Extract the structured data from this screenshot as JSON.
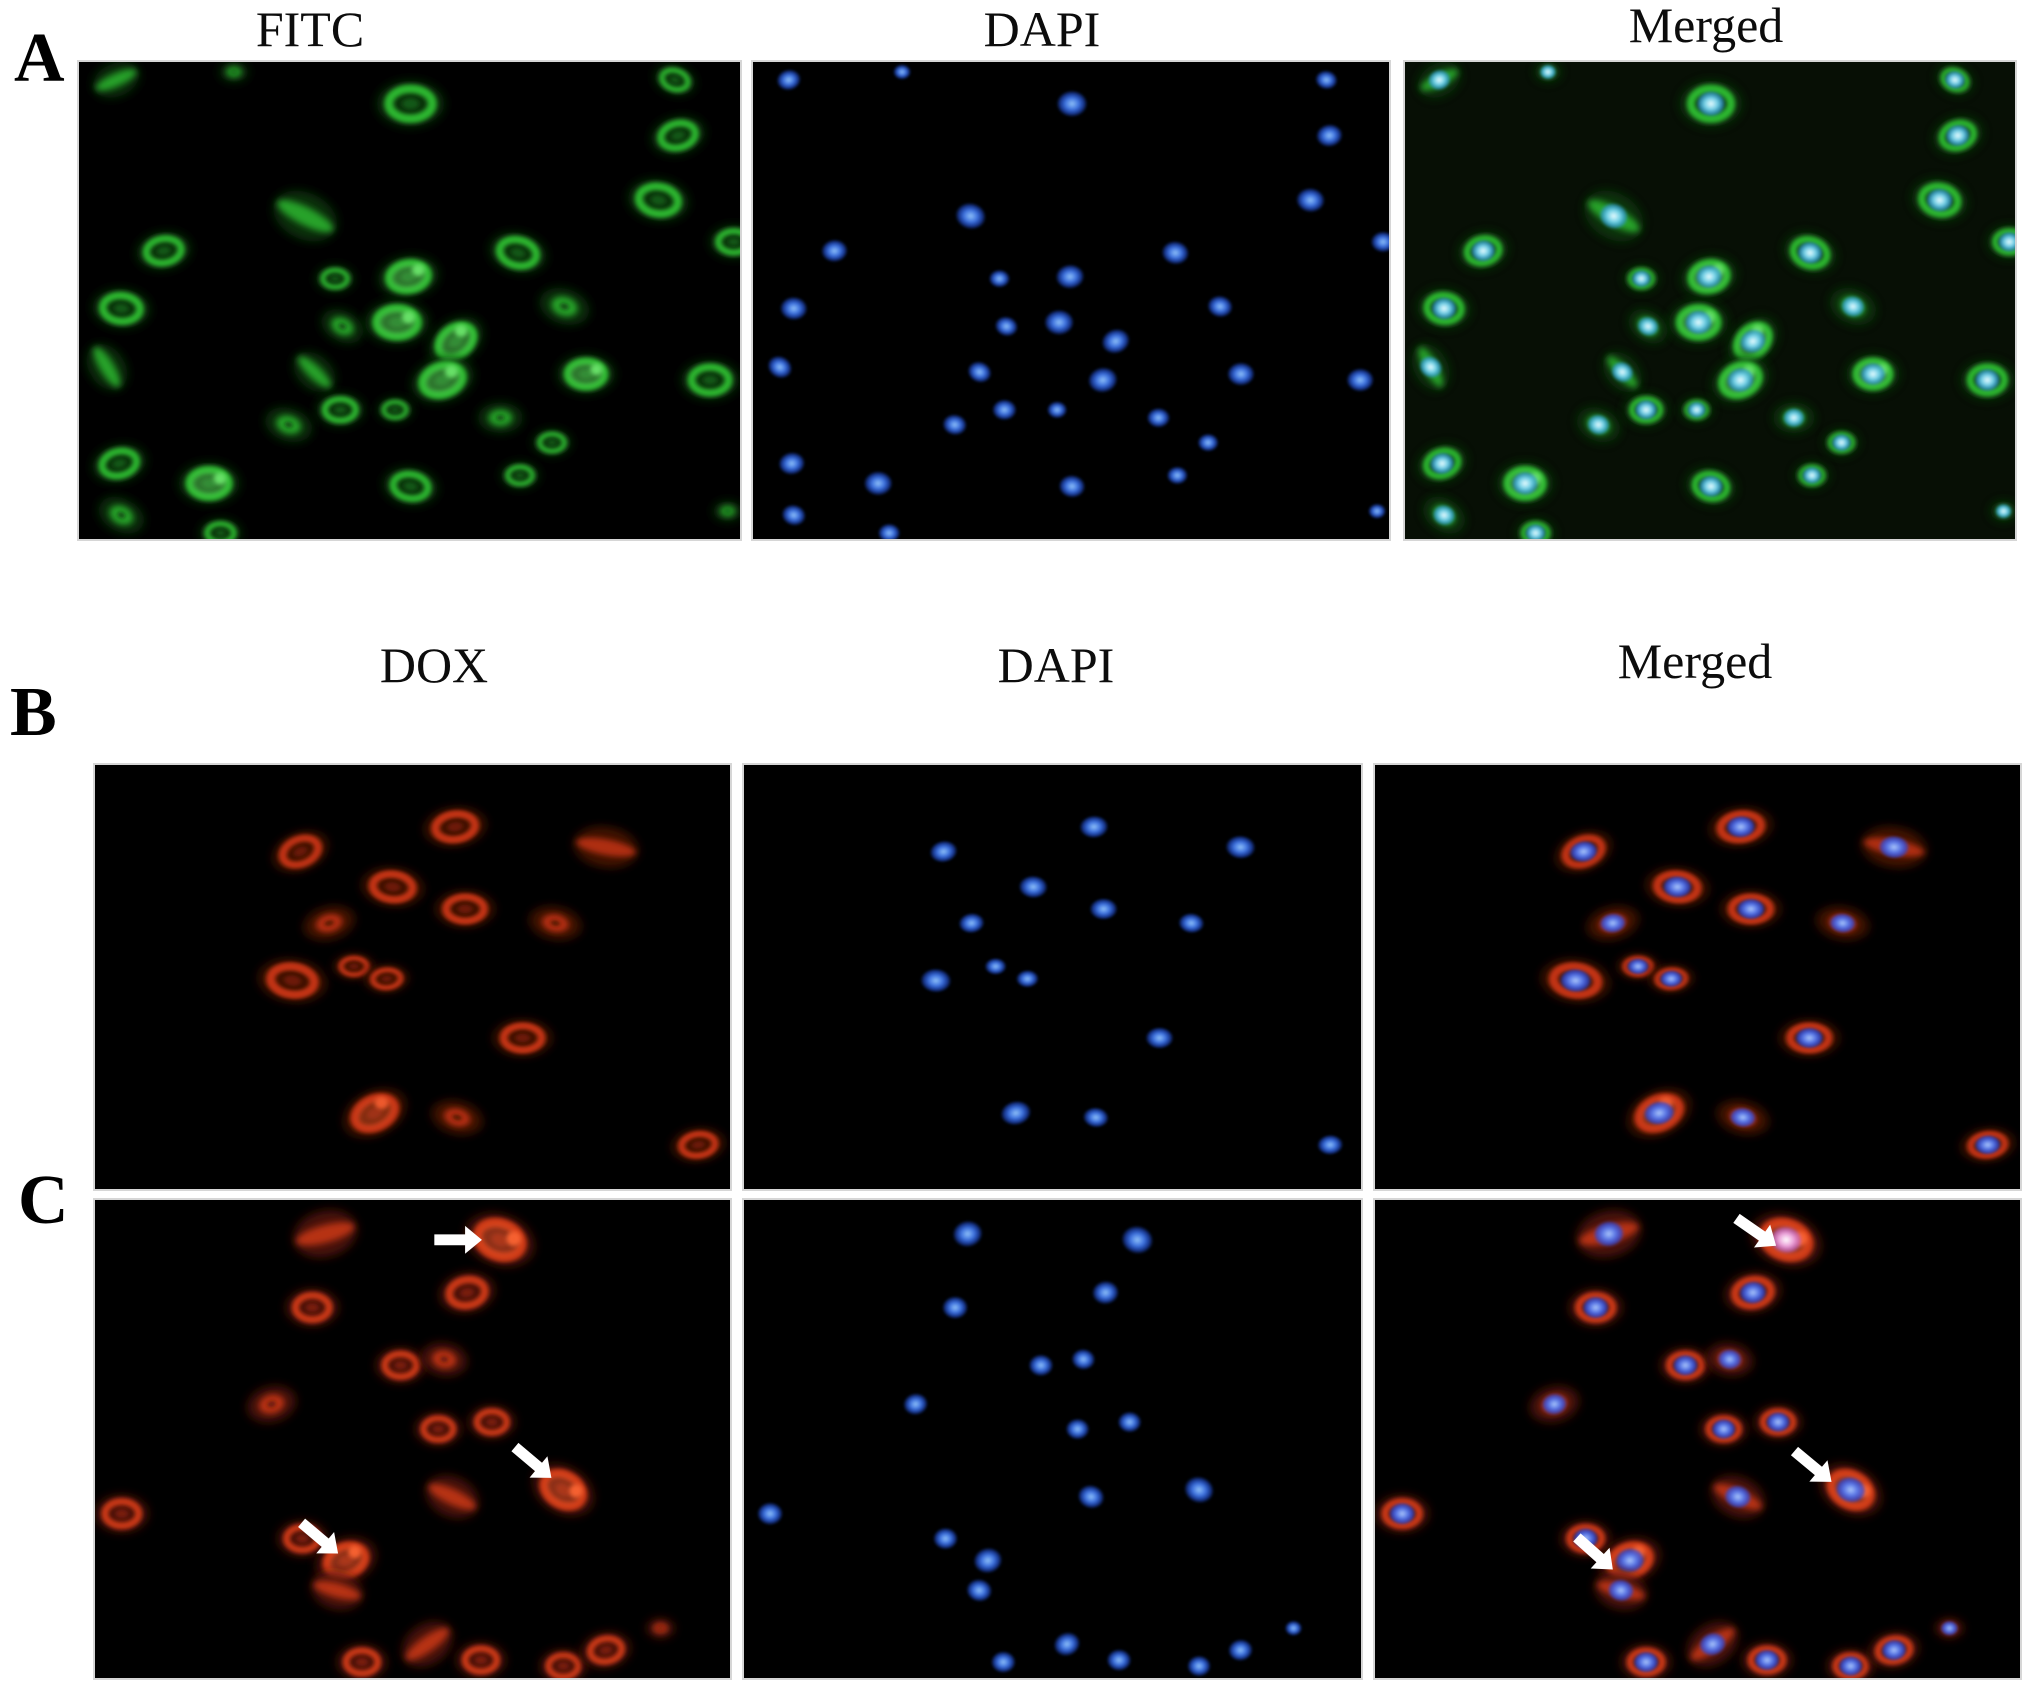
{
  "rows": [
    {
      "label": "A",
      "titles": [
        "FITC",
        "DAPI",
        "Merged"
      ],
      "body": "green",
      "nucleus": "blue",
      "mergedNucleus": "cyan",
      "mergedTint": "#0a1607",
      "cells": [
        [
          36,
          18,
          15,
          -25,
          "s"
        ],
        [
          150,
          10,
          9,
          0,
          "b"
        ],
        [
          321,
          42,
          21,
          0,
          "r"
        ],
        [
          577,
          18,
          13,
          20,
          "r"
        ],
        [
          580,
          74,
          17,
          -15,
          "r"
        ],
        [
          219,
          155,
          21,
          28,
          "s"
        ],
        [
          82,
          190,
          17,
          -10,
          "r"
        ],
        [
          561,
          139,
          19,
          10,
          "r"
        ],
        [
          425,
          192,
          18,
          15,
          "r"
        ],
        [
          634,
          181,
          15,
          0,
          "r"
        ],
        [
          248,
          218,
          12,
          0,
          "r"
        ],
        [
          319,
          216,
          19,
          -10,
          "r",
          1
        ],
        [
          41,
          248,
          18,
          5,
          "r"
        ],
        [
          255,
          266,
          14,
          30,
          "b"
        ],
        [
          308,
          262,
          20,
          0,
          "r",
          1
        ],
        [
          365,
          281,
          19,
          -40,
          "r",
          1
        ],
        [
          470,
          246,
          16,
          20,
          "b"
        ],
        [
          491,
          314,
          18,
          0,
          "r",
          1
        ],
        [
          27,
          307,
          16,
          60,
          "s"
        ],
        [
          228,
          312,
          15,
          45,
          "s"
        ],
        [
          352,
          320,
          20,
          -20,
          "r",
          1
        ],
        [
          611,
          320,
          18,
          0,
          "r"
        ],
        [
          253,
          350,
          15,
          0,
          "r"
        ],
        [
          306,
          350,
          11,
          0,
          "r"
        ],
        [
          203,
          365,
          15,
          20,
          "b"
        ],
        [
          408,
          358,
          14,
          0,
          "b"
        ],
        [
          458,
          383,
          12,
          0,
          "r"
        ],
        [
          39,
          404,
          17,
          -15,
          "r"
        ],
        [
          126,
          424,
          19,
          0,
          "r",
          1
        ],
        [
          41,
          456,
          15,
          30,
          "b"
        ],
        [
          321,
          427,
          17,
          10,
          "r"
        ],
        [
          427,
          416,
          12,
          0,
          "r"
        ],
        [
          137,
          474,
          13,
          0,
          "r"
        ],
        [
          628,
          452,
          9,
          0,
          "b"
        ]
      ]
    },
    {
      "label": "B",
      "titles": [
        "DOX",
        "DAPI",
        "Merged"
      ],
      "body": "red",
      "nucleus": "blue",
      "mergedNucleus": "blueM",
      "mergedTint": null,
      "cells": [
        [
          207,
          98,
          19,
          -30,
          "r"
        ],
        [
          363,
          70,
          20,
          -10,
          "r"
        ],
        [
          515,
          93,
          21,
          12,
          "s"
        ],
        [
          300,
          138,
          20,
          8,
          "r"
        ],
        [
          236,
          179,
          17,
          -20,
          "b"
        ],
        [
          373,
          163,
          19,
          0,
          "r"
        ],
        [
          464,
          179,
          17,
          15,
          "b"
        ],
        [
          199,
          244,
          22,
          10,
          "r"
        ],
        [
          261,
          228,
          13,
          0,
          "r"
        ],
        [
          294,
          242,
          14,
          -5,
          "r"
        ],
        [
          431,
          309,
          19,
          0,
          "r"
        ],
        [
          282,
          394,
          22,
          -35,
          "r",
          1
        ],
        [
          365,
          399,
          17,
          20,
          "b"
        ],
        [
          608,
          430,
          17,
          -10,
          "r"
        ]
      ]
    },
    {
      "label": "C",
      "titles": [],
      "body": "redC",
      "nucleus": "blue",
      "mergedNucleus": "blueM",
      "mergedTint": null,
      "pinkNucleusIndex": 1,
      "cells": [
        [
          232,
          34,
          21,
          -15,
          "s"
        ],
        [
          408,
          40,
          23,
          20,
          "r",
          1
        ],
        [
          375,
          93,
          18,
          -10,
          "r"
        ],
        [
          219,
          108,
          17,
          0,
          "r"
        ],
        [
          308,
          166,
          16,
          0,
          "r"
        ],
        [
          352,
          160,
          15,
          10,
          "b"
        ],
        [
          178,
          205,
          16,
          -15,
          "b"
        ],
        [
          346,
          230,
          15,
          0,
          "r"
        ],
        [
          400,
          223,
          15,
          0,
          "r"
        ],
        [
          27,
          315,
          17,
          0,
          "r"
        ],
        [
          360,
          298,
          18,
          25,
          "s"
        ],
        [
          472,
          291,
          21,
          30,
          "r",
          1
        ],
        [
          209,
          340,
          16,
          0,
          "r"
        ],
        [
          253,
          362,
          20,
          -20,
          "r",
          1
        ],
        [
          244,
          392,
          17,
          15,
          "s"
        ],
        [
          269,
          464,
          16,
          0,
          "r"
        ],
        [
          335,
          446,
          18,
          -35,
          "s"
        ],
        [
          389,
          462,
          16,
          0,
          "r"
        ],
        [
          472,
          468,
          15,
          0,
          "r"
        ],
        [
          515,
          452,
          16,
          -10,
          "r"
        ],
        [
          570,
          430,
          9,
          0,
          "b"
        ]
      ],
      "arrows": {
        "dox": [
          [
            390,
            40,
            0
          ],
          [
            460,
            279,
            40
          ],
          [
            245,
            355,
            40
          ]
        ],
        "merged": [
          [
            398,
            46,
            35
          ],
          [
            453,
            283,
            40
          ],
          [
            236,
            371,
            42
          ]
        ]
      }
    }
  ],
  "palette": {
    "green": {
      "halo": "#0c3a0f",
      "ring": "#2fbe33",
      "bright": "#6ae56a",
      "inner": "#17691b"
    },
    "red": {
      "halo": "#4e1206",
      "ring": "#c93418",
      "bright": "#f25c2e",
      "inner": "#801f0c"
    },
    "redC": {
      "halo": "#581507",
      "ring": "#d23a18",
      "bright": "#fa6330",
      "inner": "#8f230d"
    },
    "blue": {
      "edge": "#1c43b5",
      "mid": "#3f76e9",
      "core": "#90c2f8"
    },
    "cyan": {
      "edge": "#2f96cf",
      "mid": "#74d4ef",
      "core": "#eafcff"
    },
    "blueM": {
      "edge": "#2b4add",
      "mid": "#5377ef",
      "core": "#aac6fa"
    },
    "pink": {
      "edge": "#c267c2",
      "mid": "#efa6e3",
      "core": "#ffffff"
    },
    "arrow": "#ffffff",
    "panel_background": "#000000",
    "panel_border": "#d6d6d6"
  }
}
